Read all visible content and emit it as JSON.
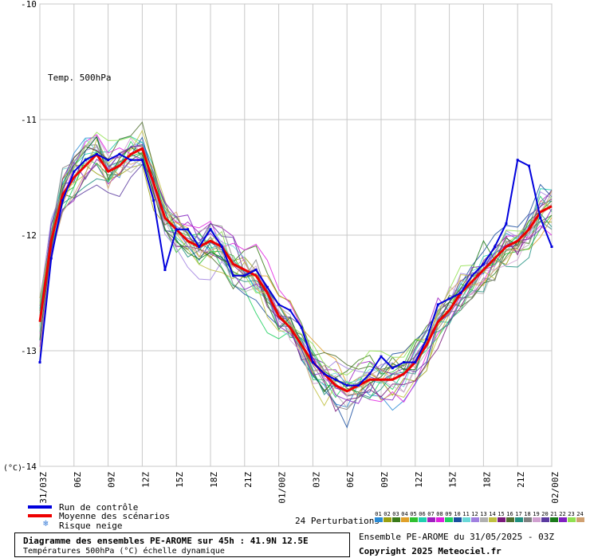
{
  "chart_data": {
    "type": "line",
    "title": "Diagramme des ensembles PE-AROME sur 45h : 41.9N 12.5E",
    "subtitle": "Températures 500hPa (°C) échelle dynamique",
    "annotation": "Temp. 500hPa",
    "ylabel": "(°C)",
    "ylim": [
      -14,
      -10
    ],
    "yticks": [
      -10,
      -11,
      -12,
      -13,
      -14
    ],
    "ytick_labels": [
      "-10",
      "-11",
      "-12",
      "-13",
      "-14"
    ],
    "xlim": [
      0,
      45
    ],
    "xticks": [
      {
        "h": 0,
        "label": "31/03Z"
      },
      {
        "h": 3,
        "label": "06Z"
      },
      {
        "h": 6,
        "label": "09Z"
      },
      {
        "h": 9,
        "label": "12Z"
      },
      {
        "h": 12,
        "label": "15Z"
      },
      {
        "h": 15,
        "label": "18Z"
      },
      {
        "h": 18,
        "label": "21Z"
      },
      {
        "h": 21,
        "label": "01/00Z"
      },
      {
        "h": 24,
        "label": "03Z"
      },
      {
        "h": 27,
        "label": "06Z"
      },
      {
        "h": 30,
        "label": "09Z"
      },
      {
        "h": 33,
        "label": "12Z"
      },
      {
        "h": 36,
        "label": "15Z"
      },
      {
        "h": 39,
        "label": "18Z"
      },
      {
        "h": 42,
        "label": "21Z"
      },
      {
        "h": 45,
        "label": "02/00Z"
      }
    ],
    "grid": true,
    "hours": [
      0,
      1,
      2,
      3,
      4,
      5,
      6,
      7,
      8,
      9,
      10,
      11,
      12,
      13,
      14,
      15,
      16,
      17,
      18,
      19,
      20,
      21,
      22,
      23,
      24,
      25,
      26,
      27,
      28,
      29,
      30,
      31,
      32,
      33,
      34,
      35,
      36,
      37,
      38,
      39,
      40,
      41,
      42,
      43,
      44,
      45
    ],
    "mean": {
      "name": "Moyenne des scénarios",
      "color": "#ee0000",
      "values": [
        -12.75,
        -12.05,
        -11.65,
        -11.5,
        -11.4,
        -11.3,
        -11.45,
        -11.4,
        -11.3,
        -11.25,
        -11.55,
        -11.85,
        -11.95,
        -12.05,
        -12.1,
        -12.05,
        -12.1,
        -12.25,
        -12.3,
        -12.35,
        -12.5,
        -12.7,
        -12.8,
        -12.95,
        -13.1,
        -13.2,
        -13.3,
        -13.35,
        -13.3,
        -13.25,
        -13.25,
        -13.25,
        -13.2,
        -13.1,
        -12.95,
        -12.75,
        -12.65,
        -12.5,
        -12.4,
        -12.3,
        -12.2,
        -12.1,
        -12.05,
        -11.95,
        -11.8,
        -11.75
      ]
    },
    "control": {
      "name": "Run de contrôle",
      "color": "#0000dd",
      "values": [
        -13.1,
        -12.2,
        -11.7,
        -11.45,
        -11.35,
        -11.3,
        -11.35,
        -11.3,
        -11.35,
        -11.35,
        -11.7,
        -12.3,
        -11.95,
        -11.95,
        -12.1,
        -11.95,
        -12.1,
        -12.35,
        -12.35,
        -12.3,
        -12.45,
        -12.6,
        -12.65,
        -12.8,
        -13.1,
        -13.2,
        -13.25,
        -13.3,
        -13.3,
        -13.2,
        -13.05,
        -13.15,
        -13.1,
        -13.1,
        -12.9,
        -12.6,
        -12.55,
        -12.5,
        -12.35,
        -12.25,
        -12.1,
        -11.9,
        -11.35,
        -11.4,
        -11.85,
        -12.1
      ]
    },
    "snow_risk_label": "Risque neige",
    "perturbations": {
      "label": "24 Perturbations",
      "members": [
        {
          "id": "01",
          "color": "#2a8bd6"
        },
        {
          "id": "02",
          "color": "#9aa010"
        },
        {
          "id": "03",
          "color": "#3a7a1a"
        },
        {
          "id": "04",
          "color": "#e0a02a"
        },
        {
          "id": "05",
          "color": "#30c030"
        },
        {
          "id": "06",
          "color": "#20d0b0"
        },
        {
          "id": "07",
          "color": "#a020c0"
        },
        {
          "id": "08",
          "color": "#e020e0"
        },
        {
          "id": "09",
          "color": "#20d060"
        },
        {
          "id": "10",
          "color": "#1a4fa0"
        },
        {
          "id": "11",
          "color": "#6ad8d8"
        },
        {
          "id": "12",
          "color": "#a080e0"
        },
        {
          "id": "13",
          "color": "#b0b0b0"
        },
        {
          "id": "14",
          "color": "#c0c040"
        },
        {
          "id": "15",
          "color": "#7a1a7a"
        },
        {
          "id": "16",
          "color": "#507030"
        },
        {
          "id": "17",
          "color": "#209080"
        },
        {
          "id": "18",
          "color": "#808080"
        },
        {
          "id": "19",
          "color": "#d0a0d0"
        },
        {
          "id": "20",
          "color": "#5a3aa0"
        },
        {
          "id": "21",
          "color": "#1a7a1a"
        },
        {
          "id": "22",
          "color": "#8020c0"
        },
        {
          "id": "23",
          "color": "#90e050"
        },
        {
          "id": "24",
          "color": "#d0a070"
        }
      ]
    }
  },
  "legend": {
    "control_label": "Run de contrôle",
    "mean_label": "Moyenne des scénarios",
    "snow_label": "Risque neige"
  },
  "footer": {
    "title": "Diagramme des ensembles PE-AROME sur 45h : 41.9N 12.5E",
    "subtitle": "Températures 500hPa (°C) échelle dynamique",
    "run": "Ensemble PE-AROME du 31/05/2025 - 03Z",
    "copyright": "Copyright 2025 Meteociel.fr"
  }
}
